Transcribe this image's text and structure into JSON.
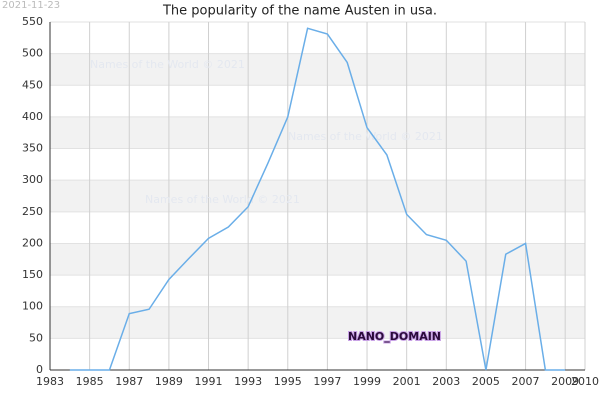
{
  "chart_data": {
    "type": "line",
    "title": "The popularity of the name Austen in usa.",
    "date_stamp": "2021-11-23",
    "watermarks": [
      "Names of the World © 2021",
      "Names of the World © 2021",
      "Names of the World © 2021"
    ],
    "annotation": "NANO_DOMAIN",
    "x": [
      1984,
      1985,
      1986,
      1987,
      1988,
      1989,
      1990,
      1991,
      1992,
      1993,
      1994,
      1995,
      1996,
      1997,
      1998,
      1999,
      2000,
      2001,
      2002,
      2003,
      2004,
      2005,
      2006,
      2007,
      2008,
      2009
    ],
    "series": [
      {
        "name": "Austen",
        "color": "#6aaee8",
        "values": [
          0,
          0,
          0,
          89,
          96,
          143,
          176,
          208,
          226,
          258,
          327,
          400,
          540,
          531,
          486,
          383,
          340,
          246,
          214,
          205,
          172,
          0,
          183,
          200,
          0,
          0
        ]
      }
    ],
    "xlim": [
      1983,
      2010
    ],
    "xticks": [
      1983,
      1985,
      1987,
      1989,
      1991,
      1993,
      1995,
      1997,
      1999,
      2001,
      2003,
      2005,
      2007,
      2009,
      2010
    ],
    "ylim": [
      0,
      550
    ],
    "yticks": [
      0,
      50,
      100,
      150,
      200,
      250,
      300,
      350,
      400,
      450,
      500,
      550
    ],
    "grid": true
  }
}
